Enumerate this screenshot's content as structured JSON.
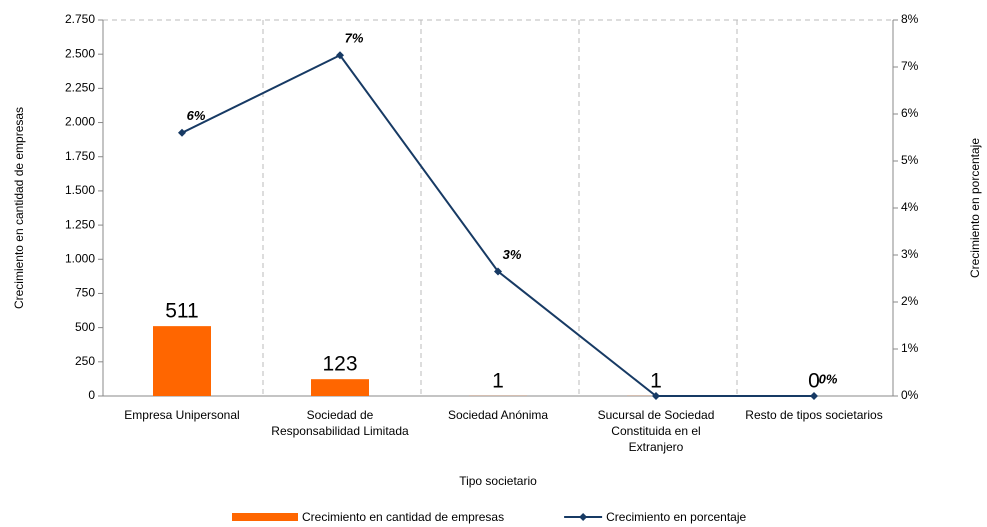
{
  "chart_data": {
    "type": "combo",
    "x_label": "Tipo societario",
    "y_label": "Crecimiento en cantidad de empresas",
    "y2_label": "Crecimiento en porcentaje",
    "categories": [
      "Empresa Unipersonal",
      "Sociedad de Responsabilidad Limitada",
      "Sociedad Anónima",
      "Sucursal de Sociedad Constituida en el Extranjero",
      "Resto de tipos societarios"
    ],
    "series": [
      {
        "name": "Crecimiento en cantidad de empresas",
        "type": "bar",
        "color": "#ff6600",
        "values": [
          511,
          123,
          1,
          1,
          0
        ]
      },
      {
        "name": "Crecimiento en porcentaje",
        "type": "line",
        "axis": "y2",
        "color": "#173a64",
        "values": [
          5.6,
          7.25,
          2.65,
          0,
          0
        ],
        "value_labels": [
          "6%",
          "7%",
          "3%",
          null,
          "0%"
        ]
      }
    ],
    "ylim": [
      0,
      2750
    ],
    "yticks": [
      0,
      250,
      500,
      750,
      {
        "value": 1000,
        "label": "1.000"
      },
      {
        "value": 1250,
        "label": "1.250"
      },
      {
        "value": 1500,
        "label": "1.500"
      },
      {
        "value": 1750,
        "label": "1.750"
      },
      {
        "value": 2000,
        "label": "2.000"
      },
      {
        "value": 2250,
        "label": "2.250"
      },
      {
        "value": 2500,
        "label": "2.500"
      },
      {
        "value": 2750,
        "label": "2.750"
      }
    ],
    "y2lim": [
      0,
      8
    ],
    "y2ticks": [
      {
        "value": 0,
        "label": "0%"
      },
      {
        "value": 1,
        "label": "1%"
      },
      {
        "value": 2,
        "label": "2%"
      },
      {
        "value": 3,
        "label": "3%"
      },
      {
        "value": 4,
        "label": "4%"
      },
      {
        "value": 5,
        "label": "5%"
      },
      {
        "value": 6,
        "label": "6%"
      },
      {
        "value": 7,
        "label": "7%"
      },
      {
        "value": 8,
        "label": "8%"
      }
    ],
    "legend": "bottom"
  }
}
